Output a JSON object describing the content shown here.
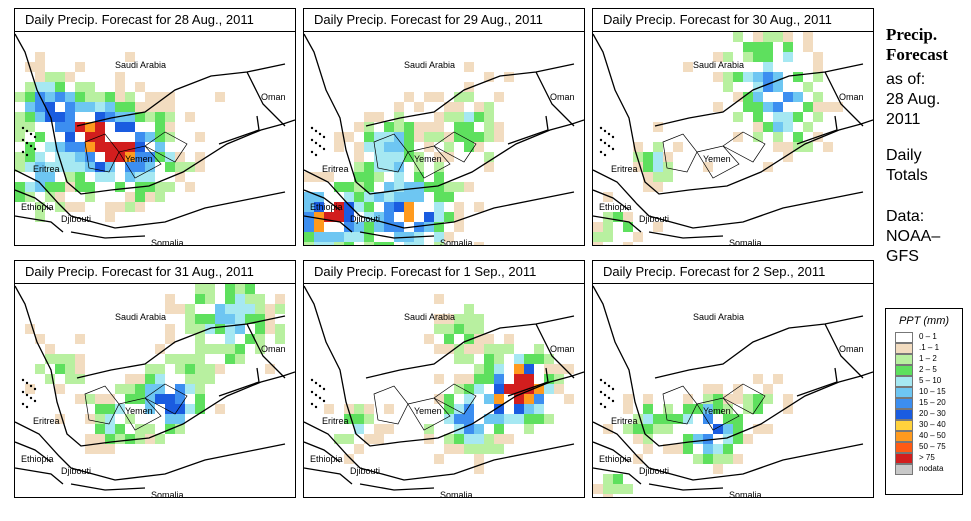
{
  "panels": [
    {
      "title": "Daily Precip. Forecast for  28 Aug., 2011",
      "seed": 1
    },
    {
      "title": "Daily Precip. Forecast for  29 Aug., 2011",
      "seed": 2
    },
    {
      "title": "Daily Precip. Forecast for  30 Aug., 2011",
      "seed": 3
    },
    {
      "title": "Daily Precip. Forecast for  31 Aug., 2011",
      "seed": 4
    },
    {
      "title": "Daily Precip. Forecast for  1 Sep., 2011",
      "seed": 5
    },
    {
      "title": "Daily Precip. Forecast for  2 Sep., 2011",
      "seed": 6
    }
  ],
  "places": {
    "saudi_arabia": "Saudi Arabia",
    "oman": "Oman",
    "yemen": "Yemen",
    "eritrea": "Eritrea",
    "ethiopia": "Ethiopia",
    "djibouti": "Djibouti",
    "somalia": "Somalia"
  },
  "side": {
    "title_line1": "Precip.",
    "title_line2": "Forecast",
    "asof": "as of:",
    "date1": "28 Aug.",
    "date2": "2011",
    "daily": "Daily",
    "totals": "Totals",
    "data_label": "Data:",
    "source1": "NOAA–",
    "source2": "GFS"
  },
  "legend": {
    "title": "PPT (mm)",
    "classes": [
      {
        "label": "0 – 1",
        "color": "#ffffff"
      },
      {
        "label": ".1 – 1",
        "color": "#f2dcc0"
      },
      {
        "label": "1 – 2",
        "color": "#b8f0a0"
      },
      {
        "label": "2 – 5",
        "color": "#5ee05e"
      },
      {
        "label": "5 – 10",
        "color": "#a6e8f2"
      },
      {
        "label": "10 – 15",
        "color": "#6ec6f2"
      },
      {
        "label": "15 – 20",
        "color": "#3c8ef0"
      },
      {
        "label": "20 – 30",
        "color": "#1a5ce0"
      },
      {
        "label": "30 – 40",
        "color": "#ffd23c"
      },
      {
        "label": "40 – 50",
        "color": "#ff9a1e"
      },
      {
        "label": "50 – 75",
        "color": "#ff5a14"
      },
      {
        "label": "> 75",
        "color": "#d21e1e"
      },
      {
        "label": "nodata",
        "color": "#c8c8c8"
      }
    ]
  }
}
